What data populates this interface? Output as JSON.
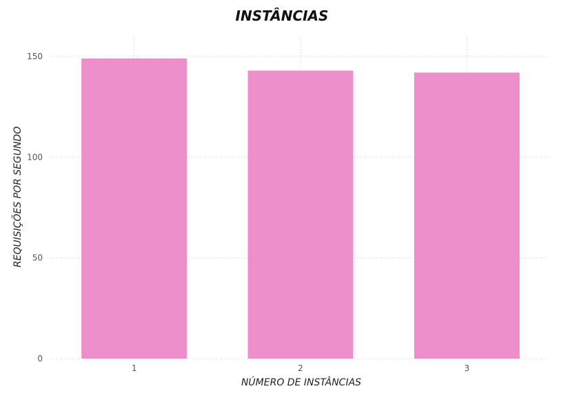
{
  "chart_data": {
    "type": "bar",
    "title": "INSTÂNCIAS",
    "xlabel": "NÚMERO DE INSTÂNCIAS",
    "ylabel": "REQUISIÇÕES POR SEGUNDO",
    "categories": [
      "1",
      "2",
      "3"
    ],
    "values": [
      149,
      143,
      142
    ],
    "ylim": [
      0,
      150
    ],
    "yticks": [
      0,
      50,
      100,
      150
    ],
    "grid": true,
    "colors": {
      "bar": "#ED8FCB"
    }
  }
}
